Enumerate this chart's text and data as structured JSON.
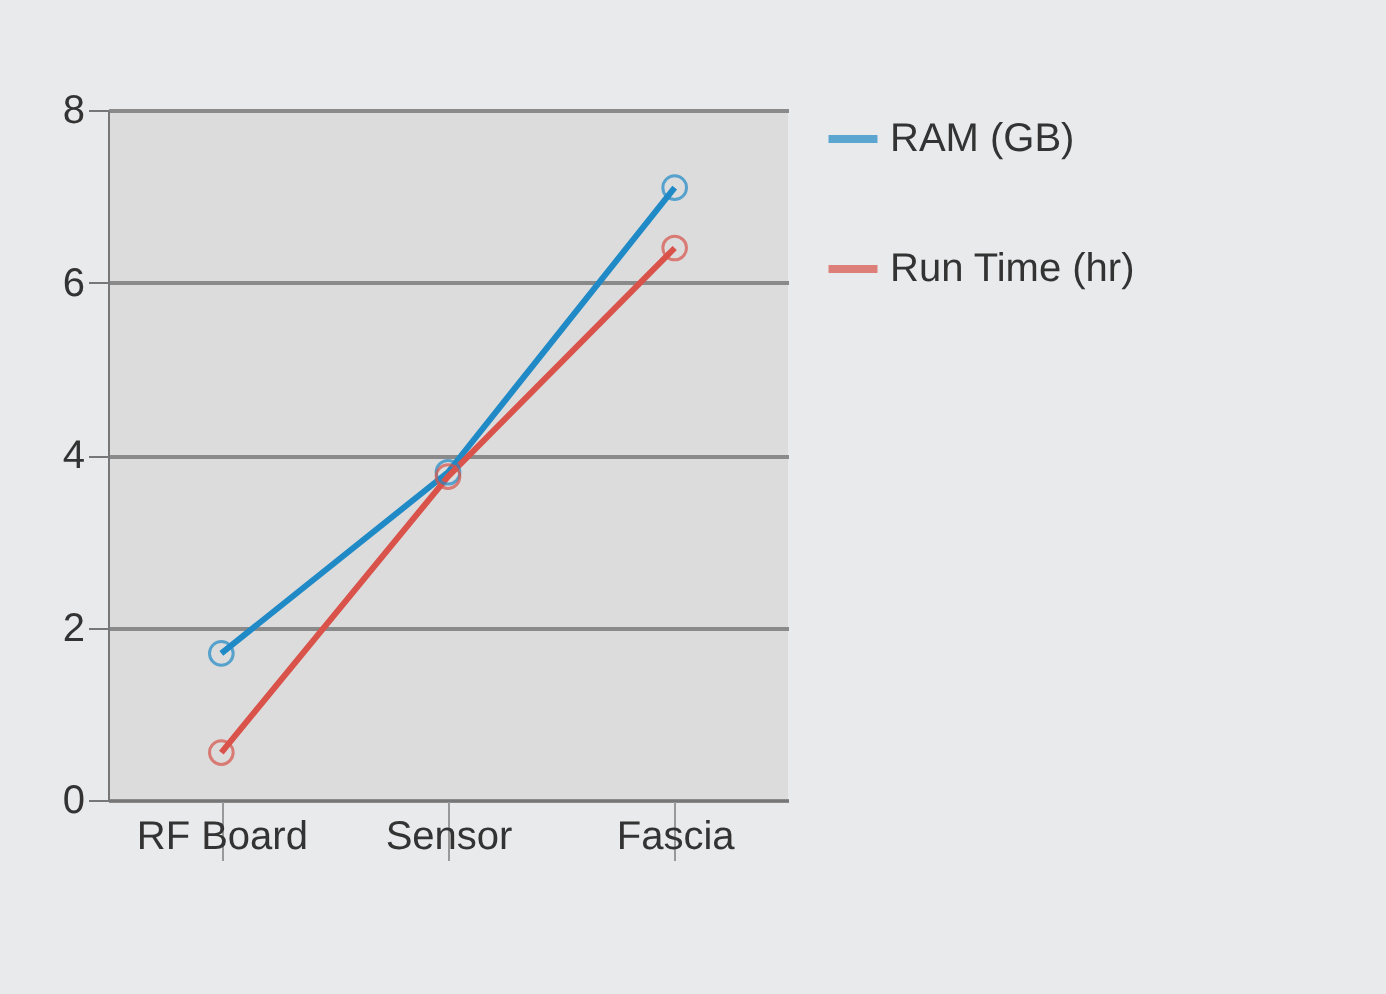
{
  "chart_data": {
    "type": "line",
    "categories": [
      "RF Board",
      "Sensor",
      "Fascia"
    ],
    "series": [
      {
        "name": "RAM (GB)",
        "color": "#1f8ac6",
        "values": [
          1.7,
          3.8,
          7.1
        ]
      },
      {
        "name": "Run Time (hr)",
        "color": "#d9534a",
        "values": [
          0.55,
          3.75,
          6.4
        ]
      }
    ],
    "ylim": [
      0,
      8
    ],
    "yticks": [
      0,
      2,
      4,
      6,
      8
    ],
    "grid": "y",
    "legend": "right",
    "marker": "circle"
  }
}
